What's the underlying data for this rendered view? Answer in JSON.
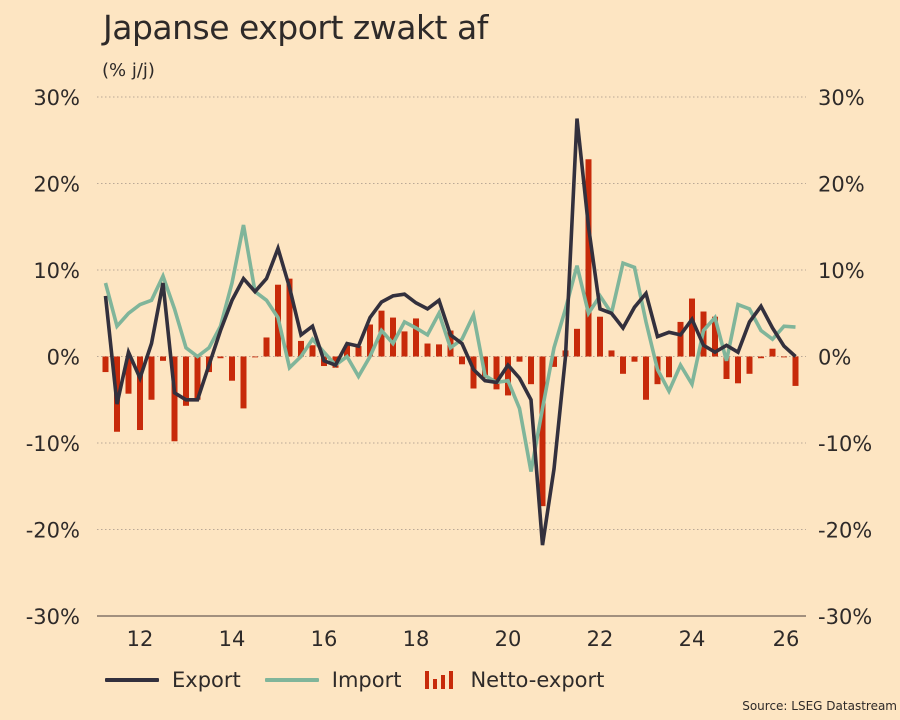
{
  "header": {
    "title": "Japanse export zwakt af",
    "subtitle": "(% j/j)"
  },
  "legend": {
    "items": [
      {
        "label": "Export",
        "color": "#33303d",
        "kind": "line"
      },
      {
        "label": "Import",
        "color": "#80b59a",
        "kind": "line"
      },
      {
        "label": "Netto-export",
        "color": "#c72a0a",
        "kind": "bars"
      }
    ]
  },
  "source": "Source: LSEG Datastream",
  "chart_data": {
    "type": "line",
    "title": "Japanse export zwakt af",
    "ylabel": "(% j/j)",
    "xlabel": "",
    "x_start": 2011.25,
    "x_step": 0.25,
    "xlim": [
      2011.15,
      2026.5
    ],
    "ylim": [
      -30,
      30
    ],
    "yticks": [
      30,
      20,
      10,
      0,
      -10,
      -20,
      -30
    ],
    "ytick_labels": [
      "30%",
      "20%",
      "10%",
      "0%",
      "-10%",
      "-20%",
      "-30%"
    ],
    "xticks": [
      2012,
      2014,
      2016,
      2018,
      2020,
      2022,
      2024,
      2026
    ],
    "xtick_labels": [
      "12",
      "14",
      "16",
      "18",
      "20",
      "22",
      "24",
      "26"
    ],
    "grid": "horizontal-dotted",
    "legend_position": "bottom-left",
    "series": [
      {
        "name": "Export",
        "type": "line",
        "color": "#33303d",
        "values": [
          7,
          -5.5,
          0.5,
          -2.5,
          1.5,
          8.5,
          -4.2,
          -5,
          -5,
          -1,
          3,
          6.5,
          9,
          7.5,
          9,
          12.5,
          8,
          2.5,
          3.5,
          -0.5,
          -1,
          1.5,
          1.2,
          4.5,
          6.3,
          7,
          7.2,
          6.2,
          5.5,
          6.5,
          2.5,
          1.5,
          -1.5,
          -2.8,
          -3,
          -1,
          -2.5,
          -5,
          -21.8,
          -13,
          0,
          27.5,
          15,
          5.5,
          5,
          3.3,
          5.7,
          7.3,
          2.3,
          2.8,
          2.5,
          4.3,
          1.3,
          0.5,
          1.3,
          0.5,
          4,
          5.8,
          3.3,
          1.2,
          0
        ]
      },
      {
        "name": "Import",
        "type": "line",
        "color": "#80b59a",
        "values": [
          8.5,
          3.5,
          5,
          6,
          6.5,
          9.3,
          5.5,
          1,
          0,
          1,
          3.5,
          8.5,
          15.2,
          7.5,
          6.5,
          4.5,
          -1.3,
          0,
          2,
          0.5,
          -1,
          0,
          -2.3,
          0,
          3,
          1.5,
          4,
          3.3,
          2.5,
          5,
          1,
          2,
          4.8,
          -2.2,
          -3,
          -2.8,
          -6,
          -13.3,
          -6,
          1,
          5.5,
          10.5,
          5,
          7,
          5,
          10.8,
          10.3,
          4,
          -1.5,
          -4,
          -1,
          -3.2,
          3,
          4.5,
          -0.5,
          6,
          5.5,
          3,
          2,
          3.5,
          3.4
        ]
      },
      {
        "name": "Netto-export",
        "type": "bar",
        "color": "#c72a0a",
        "values": [
          -1.8,
          -8.7,
          -4.3,
          -8.5,
          -5,
          -0.5,
          -9.8,
          -5.7,
          -5,
          -1.8,
          -0.2,
          -2.8,
          -6,
          -0.1,
          2.2,
          8.3,
          9,
          1.8,
          1.3,
          -1.1,
          -1.3,
          1.3,
          1.2,
          3.7,
          5.3,
          4.5,
          2.9,
          4.4,
          1.5,
          1.4,
          3,
          -0.9,
          -3.7,
          -2.5,
          -3.8,
          -4.5,
          -0.6,
          -3.2,
          -17.3,
          -1.2,
          0.7,
          3.2,
          22.8,
          4.6,
          0.7,
          -2,
          -0.6,
          -5,
          -3.2,
          -2.4,
          4,
          6.7,
          5.2,
          4.6,
          -2.6,
          -3.1,
          -2,
          -0.2,
          0.9,
          -0.1,
          -3.4
        ]
      }
    ]
  }
}
